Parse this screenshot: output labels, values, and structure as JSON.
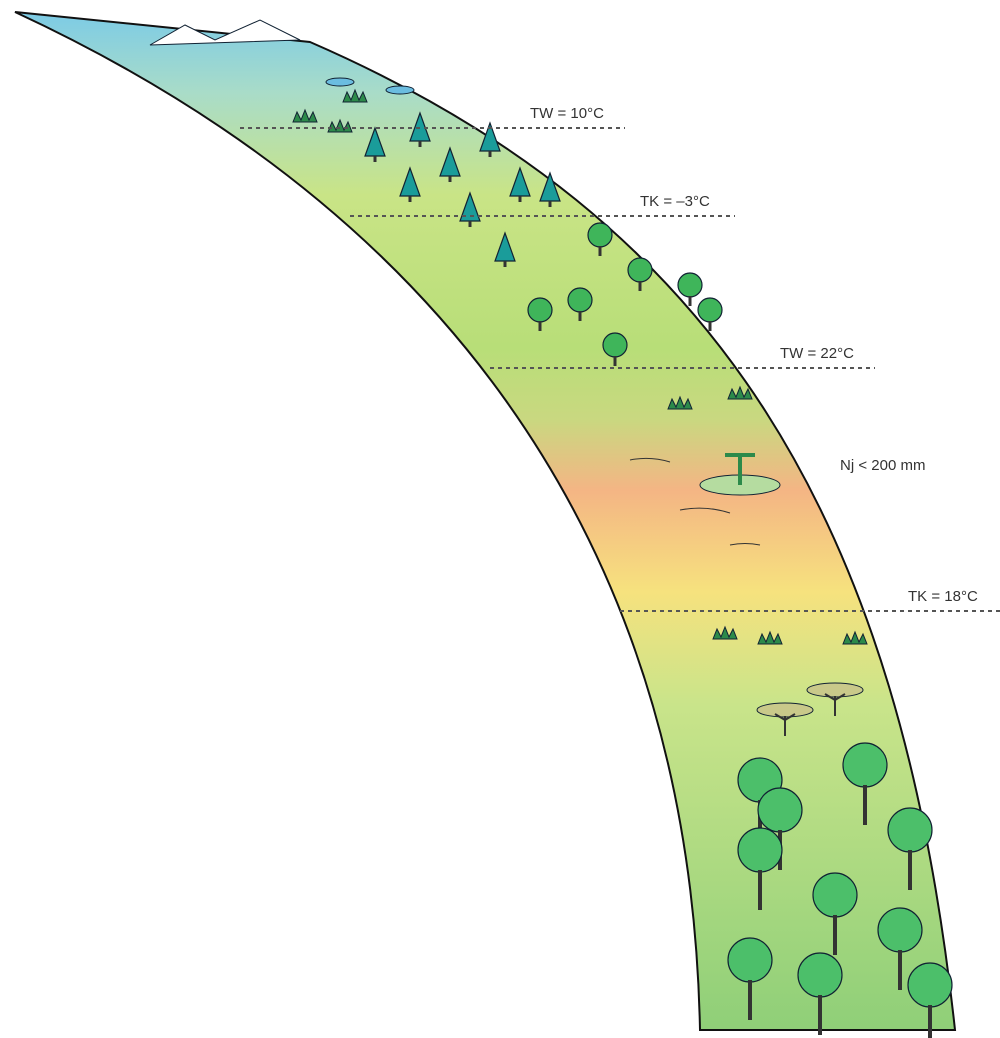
{
  "labels": [
    "TW = 10°C",
    "TK = –3°C",
    "TW = 22°C",
    "Nj < 200 mm",
    "TK = 18°C"
  ]
}
